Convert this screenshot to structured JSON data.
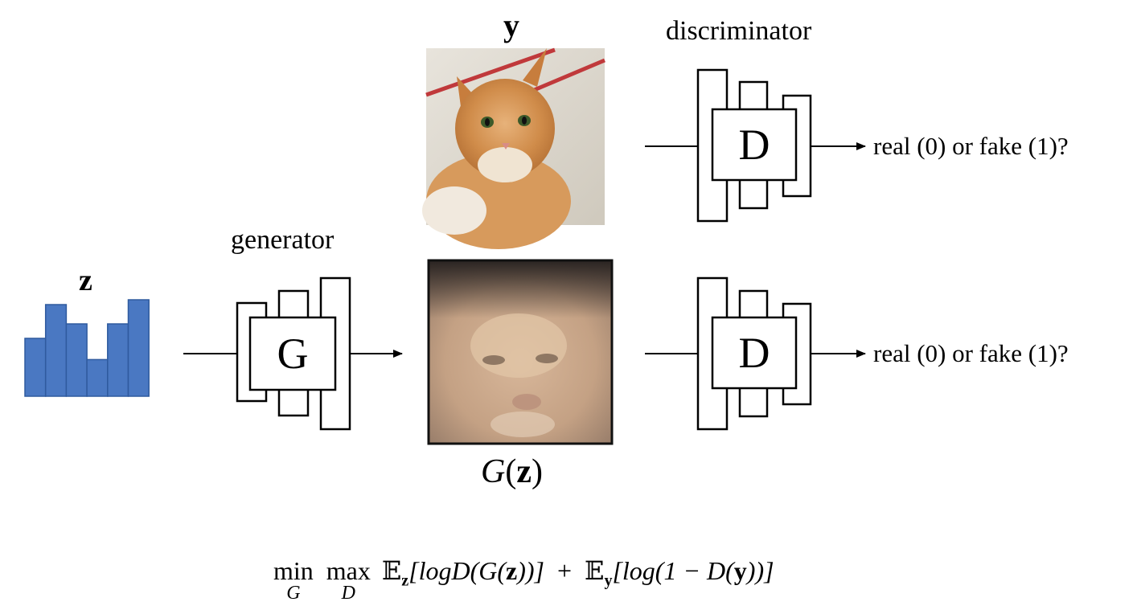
{
  "labels": {
    "y": "y",
    "z": "z",
    "discriminator": "discriminator",
    "generator": "generator",
    "real_or_fake_top": "real (0) or fake (1)?",
    "real_or_fake_bottom": "real (0) or fake (1)?",
    "gz_letter": "G",
    "gz_arg": "z",
    "gz_open": "(",
    "gz_close": ")"
  },
  "blocks": {
    "generator_letter": "G",
    "discriminator_top_letter": "D",
    "discriminator_bottom_letter": "D"
  },
  "latent_histogram": {
    "color": "#4a78c2",
    "stroke": "#2f5a9e",
    "values": [
      0.6,
      0.95,
      0.75,
      0.38,
      0.75,
      1.0
    ]
  },
  "images": {
    "real_image_icon": "cat-photo",
    "generated_image_icon": "generated-cat-photo"
  },
  "formula": {
    "min": "min",
    "min_sub": "G",
    "max": "max",
    "max_sub": "D",
    "E": "𝔼",
    "term1_sub": "z",
    "term1_body_a": "[logD(G(",
    "term1_body_z": "z",
    "term1_body_b": "))]",
    "plus": "+",
    "term2_sub": "y",
    "term2_body_a": "[log(1 − D(",
    "term2_body_y": "y",
    "term2_body_b": "))]"
  }
}
